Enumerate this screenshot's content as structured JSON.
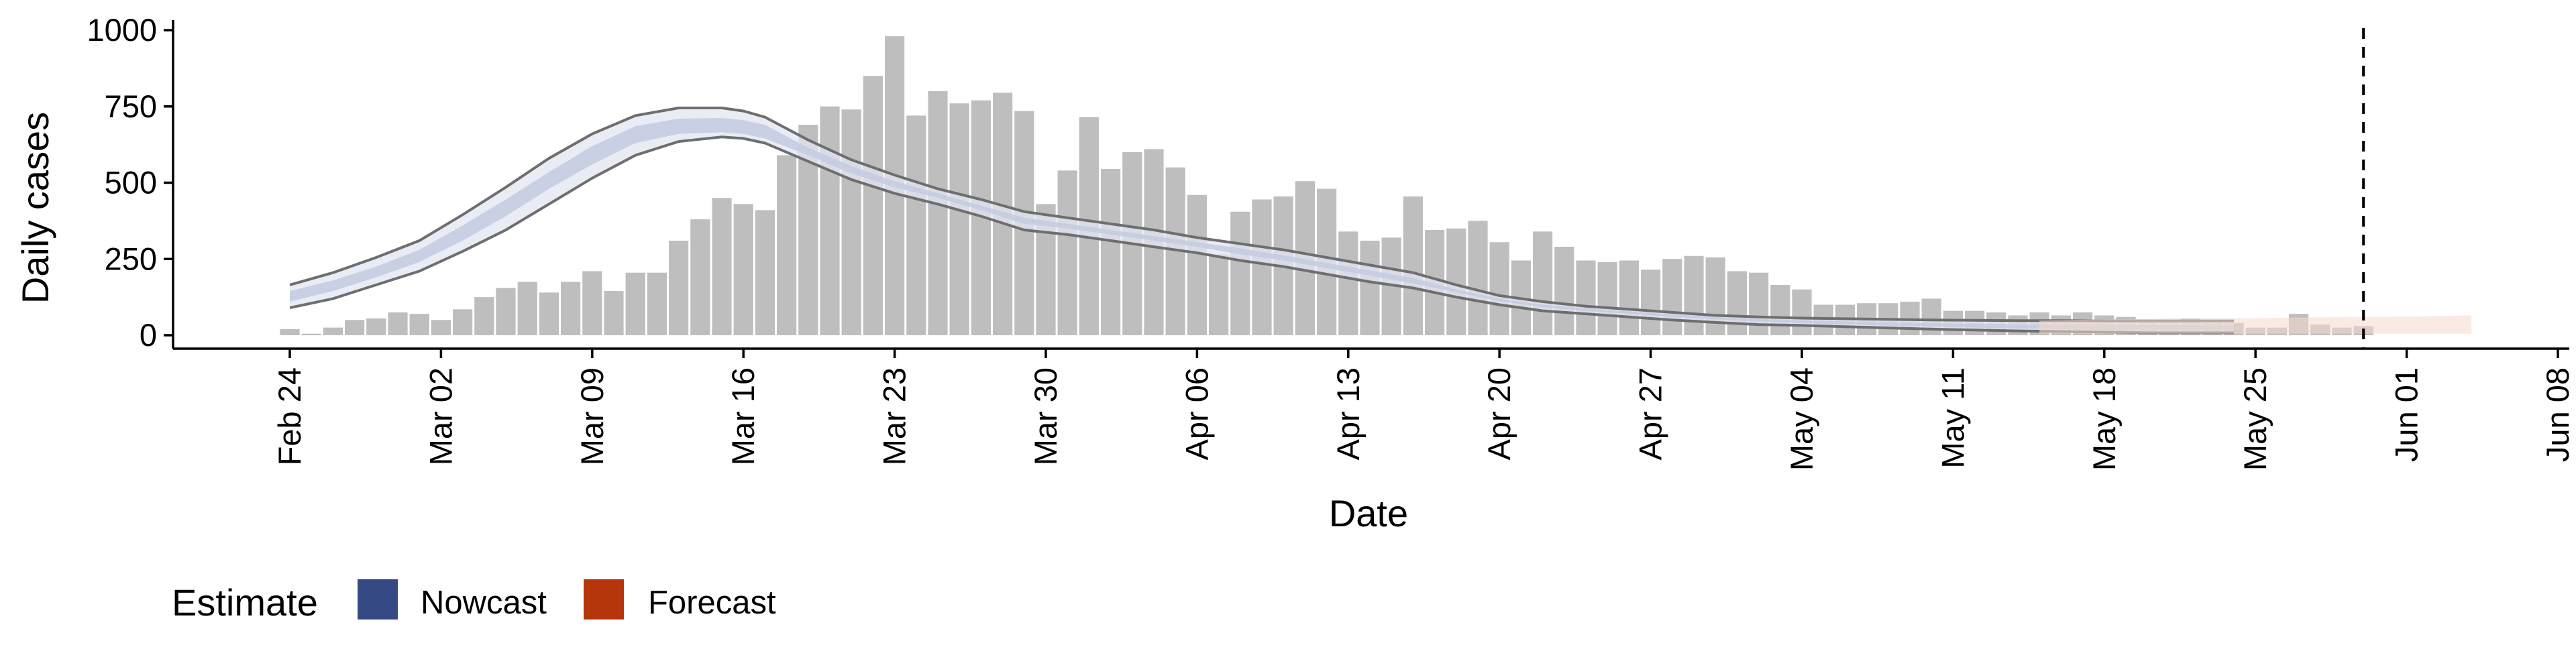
{
  "chart_data": {
    "type": "bar",
    "xlabel": "Date",
    "ylabel": "Daily cases",
    "ylim": [
      0,
      1000
    ],
    "y_ticks": [
      0,
      250,
      500,
      750,
      1000
    ],
    "x_tick_labels": [
      "Feb 24",
      "Mar 02",
      "Mar 09",
      "Mar 16",
      "Mar 23",
      "Mar 30",
      "Apr 06",
      "Apr 13",
      "Apr 20",
      "Apr 27",
      "May 04",
      "May 11",
      "May 18",
      "May 25",
      "Jun 01",
      "Jun 08"
    ],
    "grid": false,
    "legend": {
      "title": "Estimate",
      "position": "bottom-left",
      "items": [
        {
          "label": "Nowcast",
          "color": "#354a85"
        },
        {
          "label": "Forecast",
          "color": "#b5360a"
        }
      ]
    },
    "colors": {
      "bars": "#bebebe",
      "nowcast_band": "#c3cbe0",
      "nowcast_band_outer": "#e2e6f0",
      "band_edge_line": "#6e6e6e",
      "forecast_band": "#f4d9cc",
      "vline": "#000000"
    },
    "x_start_date": "Feb 24",
    "vertical_line_day": 96,
    "bars": {
      "first_day": 0,
      "values": [
        20,
        5,
        25,
        50,
        55,
        75,
        70,
        50,
        85,
        125,
        155,
        175,
        140,
        175,
        210,
        145,
        205,
        205,
        310,
        380,
        450,
        430,
        410,
        590,
        690,
        750,
        740,
        850,
        980,
        720,
        800,
        760,
        770,
        795,
        735,
        430,
        540,
        715,
        545,
        600,
        610,
        550,
        460,
        265,
        405,
        445,
        455,
        505,
        480,
        340,
        310,
        320,
        455,
        345,
        350,
        375,
        305,
        245,
        340,
        290,
        245,
        240,
        245,
        215,
        250,
        260,
        255,
        210,
        205,
        165,
        150,
        100,
        100,
        105,
        105,
        110,
        120,
        80,
        80,
        75,
        65,
        75,
        65,
        75,
        65,
        60,
        45,
        50,
        55,
        40,
        40,
        25,
        25,
        70,
        35,
        25,
        30
      ]
    },
    "series": [
      {
        "name": "Nowcast",
        "type": "band",
        "x": [
          0,
          2,
          4,
          6,
          8,
          10,
          12,
          14,
          16,
          18,
          20,
          21,
          22,
          24,
          26,
          28,
          30,
          32,
          34,
          36,
          38,
          40,
          42,
          44,
          46,
          48,
          50,
          52,
          54,
          56,
          58,
          60,
          62,
          64,
          66,
          68,
          70,
          72,
          74,
          76,
          78,
          80,
          82,
          84,
          86,
          88,
          90
        ],
        "lower": [
          90,
          120,
          165,
          210,
          275,
          345,
          430,
          515,
          590,
          635,
          650,
          645,
          630,
          570,
          510,
          465,
          430,
          390,
          345,
          330,
          310,
          290,
          270,
          245,
          225,
          200,
          175,
          155,
          125,
          100,
          80,
          70,
          60,
          50,
          42,
          35,
          32,
          28,
          24,
          20,
          17,
          14,
          12,
          10,
          8,
          8,
          8
        ],
        "upper": [
          165,
          205,
          255,
          310,
          395,
          485,
          580,
          660,
          720,
          745,
          745,
          735,
          715,
          640,
          575,
          525,
          480,
          445,
          405,
          385,
          365,
          345,
          320,
          300,
          280,
          255,
          230,
          205,
          165,
          130,
          110,
          95,
          85,
          75,
          65,
          60,
          56,
          54,
          52,
          50,
          49,
          48,
          48,
          47,
          47,
          47,
          47
        ],
        "inner_lower": [
          110,
          145,
          190,
          240,
          310,
          390,
          480,
          560,
          630,
          660,
          665,
          660,
          645,
          590,
          530,
          485,
          450,
          410,
          365,
          350,
          330,
          310,
          290,
          265,
          245,
          220,
          195,
          170,
          140,
          112,
          92,
          80,
          70,
          60,
          52,
          45,
          40,
          36,
          32,
          28,
          25,
          22,
          20,
          18,
          16,
          16,
          16
        ],
        "inner_upper": [
          145,
          180,
          225,
          280,
          360,
          445,
          535,
          620,
          685,
          710,
          712,
          705,
          690,
          615,
          555,
          505,
          465,
          425,
          385,
          365,
          345,
          325,
          305,
          285,
          262,
          237,
          212,
          188,
          150,
          120,
          100,
          88,
          78,
          68,
          60,
          53,
          49,
          45,
          42,
          40,
          38,
          36,
          35,
          34,
          33,
          33,
          33
        ]
      },
      {
        "name": "Forecast",
        "type": "band",
        "x": [
          81,
          84,
          87,
          90,
          93,
          96,
          99,
          101
        ],
        "lower": [
          5,
          5,
          5,
          5,
          5,
          5,
          5,
          5
        ],
        "upper": [
          48,
          52,
          55,
          55,
          58,
          60,
          62,
          65
        ]
      }
    ]
  }
}
